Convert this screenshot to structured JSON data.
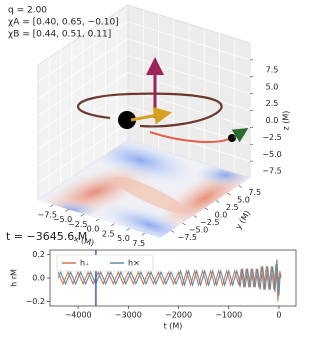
{
  "chart_data": [
    {
      "type": "3d",
      "annotations": [
        "q = 2.00",
        "χA = [0.40, 0.65, −0.10]",
        "χB = [0.44, 0.51, 0.11]"
      ],
      "time_label": "t = −3645.6 M",
      "xlabel": "x (M)",
      "ylabel": "y (M)",
      "zlabel": "z (M)",
      "xlim": [
        -10,
        10
      ],
      "ylim": [
        -10,
        10
      ],
      "zlim": [
        -10,
        10
      ],
      "xticks": [
        {
          "value": -7.5,
          "label": "−7.5"
        },
        {
          "value": -5,
          "label": "−5.0"
        },
        {
          "value": -2.5,
          "label": "−2.5"
        },
        {
          "value": 0,
          "label": "0.0"
        },
        2.5,
        {
          "value": 5,
          "label": "5.0"
        },
        7.5
      ],
      "yticks": [
        {
          "value": -7.5,
          "label": "−7.5"
        },
        {
          "value": -5,
          "label": "−5.0"
        },
        {
          "value": -2.5,
          "label": "−2.5"
        },
        {
          "value": 0,
          "label": "0.0"
        },
        2.5,
        {
          "value": 5,
          "label": "5.0"
        },
        7.5
      ],
      "zticks": [
        {
          "value": -7.5,
          "label": "−7.5"
        },
        {
          "value": -5,
          "label": "−5.0"
        },
        {
          "value": -2.5,
          "label": "−2.5"
        },
        {
          "value": 0,
          "label": "0.0"
        },
        2.5,
        {
          "value": 5,
          "label": "5.0"
        },
        7.5
      ],
      "grid": true
    },
    {
      "type": "line",
      "xlabel": "t (M)",
      "ylabel": "h rM",
      "x": [
        -4400,
        -4350,
        -4300,
        -4250,
        -4200,
        -4150,
        -4100,
        -4050,
        -4000,
        -3950,
        -3900,
        -3850,
        -3800,
        -3750,
        -3700,
        -3650,
        -3600,
        -3550,
        -3500,
        -3450,
        -3400,
        -3350,
        -3300,
        -3250,
        -3200,
        -3150,
        -3100,
        -3050,
        -3000,
        -2950,
        -2900,
        -2850,
        -2800,
        -2750,
        -2700,
        -2650,
        -2600,
        -2550,
        -2500,
        -2450,
        -2400,
        -2350,
        -2300,
        -2250,
        -2200,
        -2150,
        -2100,
        -2050,
        -2000,
        -1960,
        -1920,
        -1880,
        -1840,
        -1800,
        -1760,
        -1720,
        -1680,
        -1640,
        -1600,
        -1560,
        -1520,
        -1480,
        -1440,
        -1400,
        -1360,
        -1320,
        -1280,
        -1240,
        -1200,
        -1160,
        -1120,
        -1080,
        -1040,
        -1000,
        -960,
        -920,
        -880,
        -840,
        -800,
        -775,
        -750,
        -725,
        -700,
        -675,
        -650,
        -625,
        -600,
        -575,
        -550,
        -525,
        -500,
        -475,
        -450,
        -425,
        -400,
        -375,
        -350,
        -325,
        -300,
        -275,
        -250,
        -225,
        -200,
        -175,
        -150,
        -125,
        -100,
        -80,
        -60,
        -40,
        -20,
        0,
        20,
        40
      ],
      "series": [
        {
          "name": "h₊",
          "color": "#d9734e",
          "values": [
            0.05,
            0,
            -0.05,
            0,
            0.05,
            0,
            -0.05,
            0,
            0.05,
            0,
            -0.05,
            0,
            0.05,
            0,
            -0.05,
            0,
            0.05,
            0,
            -0.05,
            0,
            0.05,
            0,
            -0.05,
            0,
            0.05,
            0,
            -0.05,
            0,
            0.05,
            0,
            -0.05,
            0,
            0.05,
            0,
            -0.05,
            0,
            0.05,
            0,
            -0.05,
            0,
            0.05,
            0,
            -0.05,
            0,
            0.05,
            0,
            -0.05,
            0,
            0.05,
            0,
            -0.06,
            0,
            0.06,
            0,
            -0.06,
            0,
            0.06,
            0,
            -0.06,
            0,
            0.06,
            0,
            -0.06,
            0,
            0.06,
            0,
            -0.06,
            0,
            0.06,
            0,
            -0.06,
            0,
            0.06,
            0,
            -0.06,
            0,
            0.06,
            0,
            -0.06,
            0,
            0.08,
            0,
            -0.08,
            0,
            0.08,
            0,
            -0.08,
            0,
            0.08,
            0,
            -0.08,
            0,
            0.08,
            0,
            -0.08,
            0,
            0.1,
            0,
            -0.1,
            0,
            0.1,
            0,
            -0.1,
            0,
            0.1,
            0,
            -0.1,
            0,
            0.12,
            0,
            -0.2,
            0,
            0.06,
            0
          ]
        },
        {
          "name": "h×",
          "color": "#5b8fa8",
          "values": [
            0,
            0.05,
            0,
            -0.05,
            0,
            0.05,
            0,
            -0.05,
            0,
            0.05,
            0,
            -0.05,
            0,
            0.05,
            0,
            -0.05,
            0,
            0.05,
            0,
            -0.05,
            0,
            0.05,
            0,
            -0.05,
            0,
            0.05,
            0,
            -0.05,
            0,
            0.05,
            0,
            -0.05,
            0,
            0.05,
            0,
            -0.05,
            0,
            0.05,
            0,
            -0.05,
            0,
            0.05,
            0,
            -0.05,
            0,
            0.05,
            0,
            -0.05,
            0,
            0.06,
            0,
            -0.06,
            0,
            0.06,
            0,
            -0.06,
            0,
            0.06,
            0,
            -0.06,
            0,
            0.06,
            0,
            -0.06,
            0,
            0.06,
            0,
            -0.06,
            0,
            0.06,
            0,
            -0.06,
            0,
            0.06,
            0,
            -0.06,
            0,
            0.06,
            0,
            -0.08,
            0,
            0.08,
            0,
            -0.08,
            0,
            0.08,
            0,
            -0.08,
            0,
            0.08,
            0,
            -0.08,
            0,
            0.08,
            0,
            -0.1,
            0,
            0.1,
            0,
            -0.1,
            0,
            0.1,
            0,
            -0.1,
            0,
            0.1,
            0,
            -0.12,
            0,
            0.16,
            0,
            -0.15,
            0,
            0.03
          ]
        }
      ],
      "marker_x": -3645.6,
      "marker_color": "#3b5cc4",
      "xlim": [
        -4560,
        340
      ],
      "ylim": [
        -0.24,
        0.24
      ],
      "xticks": [
        {
          "value": -4000,
          "label": "−4000"
        },
        {
          "value": -3000,
          "label": "−3000"
        },
        {
          "value": -2000,
          "label": "−2000"
        },
        {
          "value": -1000,
          "label": "−1000"
        },
        0
      ],
      "yticks": [
        0.2,
        {
          "value": 0,
          "label": "0.0"
        },
        {
          "value": -0.2,
          "label": "−0.2"
        }
      ],
      "legend": "upper left",
      "grid": false
    }
  ]
}
